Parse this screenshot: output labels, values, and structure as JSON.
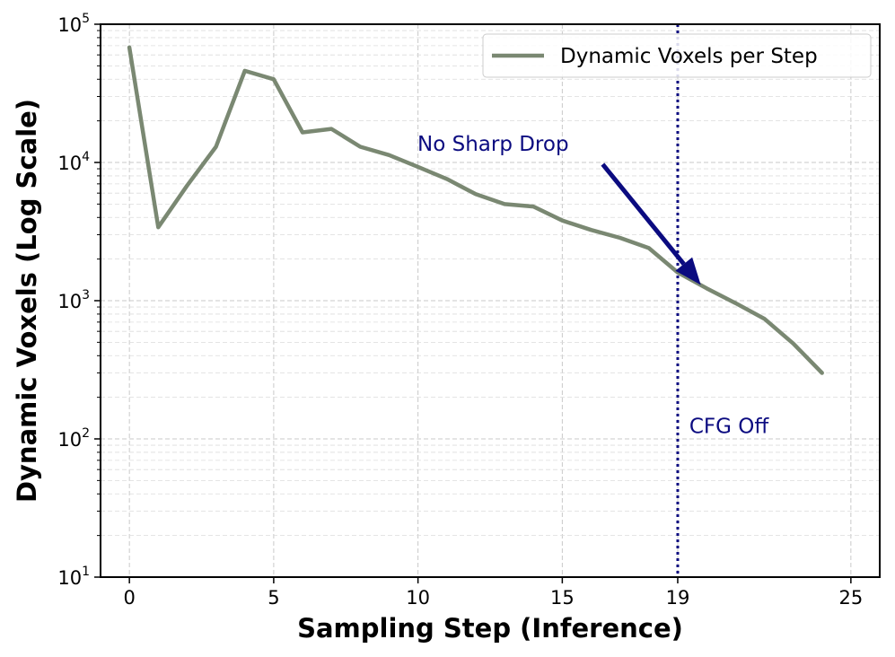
{
  "chart_data": {
    "type": "line",
    "title": "",
    "xlabel": "Sampling Step (Inference)",
    "ylabel": "Dynamic Voxels (Log Scale)",
    "xlim": [
      -1,
      26
    ],
    "ylim": [
      10,
      100000
    ],
    "yscale": "log",
    "grid": true,
    "legend_position": "top-right",
    "xticks": [
      {
        "value": 0,
        "label": "0"
      },
      {
        "value": 5,
        "label": "5"
      },
      {
        "value": 10,
        "label": "10"
      },
      {
        "value": 15,
        "label": "15"
      },
      {
        "value": 19,
        "label": "19"
      },
      {
        "value": 25,
        "label": "25"
      }
    ],
    "yticks": [
      {
        "value": 10,
        "base": "10",
        "exp": "1"
      },
      {
        "value": 100,
        "base": "10",
        "exp": "2"
      },
      {
        "value": 1000,
        "base": "10",
        "exp": "3"
      },
      {
        "value": 10000,
        "base": "10",
        "exp": "4"
      },
      {
        "value": 100000,
        "base": "10",
        "exp": "5"
      }
    ],
    "series": [
      {
        "name": "Dynamic Voxels per Step",
        "color": "#7a8872",
        "x": [
          0,
          1,
          2,
          3,
          4,
          5,
          6,
          7,
          8,
          9,
          10,
          11,
          12,
          13,
          14,
          15,
          16,
          17,
          18,
          19,
          20,
          21,
          22,
          23,
          24
        ],
        "y": [
          68000,
          3400,
          6800,
          13000,
          46000,
          40000,
          16500,
          17500,
          13000,
          11300,
          9300,
          7600,
          5900,
          5000,
          4800,
          3800,
          3250,
          2850,
          2400,
          1600,
          1230,
          960,
          740,
          490,
          300
        ]
      }
    ],
    "annotations": [
      {
        "text": "No Sharp Drop",
        "color": "#0b0b80",
        "arrow_from": [
          16.4,
          9700
        ],
        "arrow_to": [
          19.8,
          1300
        ]
      },
      {
        "text": "CFG Off",
        "color": "#0b0b80",
        "x": 19.4,
        "y": 110
      }
    ],
    "vline": {
      "x": 19,
      "color": "#0b0b80",
      "style": "dotted"
    }
  }
}
